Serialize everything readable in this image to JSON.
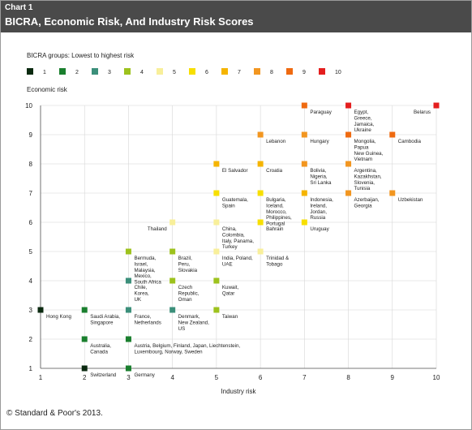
{
  "header": {
    "chart_number": "Chart 1",
    "title": "BICRA, Economic Risk, And Industry Risk Scores"
  },
  "footer": {
    "copyright": "© Standard & Poor's 2013."
  },
  "chart_data": {
    "type": "scatter",
    "legend_title": "BICRA groups: Lowest to highest risk",
    "legend_placement": "top-left",
    "xlabel": "Industry risk",
    "ylabel": "Economic risk",
    "xlim": [
      1,
      10
    ],
    "ylim": [
      1,
      10
    ],
    "x_ticks": [
      "1",
      "2",
      "3",
      "4",
      "5",
      "6",
      "7",
      "8",
      "9",
      "10"
    ],
    "y_ticks": [
      "1",
      "2",
      "3",
      "4",
      "5",
      "6",
      "7",
      "8",
      "9",
      "10"
    ],
    "grid": true,
    "groups": [
      {
        "group": 1,
        "label": "1",
        "color": "#0b2a10"
      },
      {
        "group": 2,
        "label": "2",
        "color": "#1a7f2e"
      },
      {
        "group": 3,
        "label": "3",
        "color": "#3b8f7a"
      },
      {
        "group": 4,
        "label": "4",
        "color": "#9dc21d"
      },
      {
        "group": 5,
        "label": "5",
        "color": "#f8ef9a"
      },
      {
        "group": 6,
        "label": "6",
        "color": "#f7df00"
      },
      {
        "group": 7,
        "label": "7",
        "color": "#f5b400"
      },
      {
        "group": 8,
        "label": "8",
        "color": "#f29620"
      },
      {
        "group": 9,
        "label": "9",
        "color": "#ef6a10"
      },
      {
        "group": 10,
        "label": "10",
        "color": "#e41e1e"
      }
    ],
    "points": [
      {
        "x": 1,
        "y": 3,
        "group": 1,
        "label": [
          "Hong Kong"
        ]
      },
      {
        "x": 2,
        "y": 1,
        "group": 1,
        "label": [
          "Switzerland"
        ]
      },
      {
        "x": 2,
        "y": 3,
        "group": 2,
        "label": [
          "Saudi Arabia,",
          "Singapore"
        ]
      },
      {
        "x": 2,
        "y": 2,
        "group": 2,
        "label": [
          "Australia,",
          "Canada"
        ]
      },
      {
        "x": 3,
        "y": 1,
        "group": 2,
        "label": [
          "Germany"
        ]
      },
      {
        "x": 3,
        "y": 2,
        "group": 2,
        "label": [
          "Austria, Belgium, Finland, Japan, Liechtenstein,",
          "Luxembourg, Norway, Sweden"
        ]
      },
      {
        "x": 3,
        "y": 3,
        "group": 3,
        "label": [
          "France,",
          "Netherlands"
        ]
      },
      {
        "x": 4,
        "y": 3,
        "group": 3,
        "label": [
          "Denmark,",
          "New Zealand,",
          "US"
        ]
      },
      {
        "x": 3,
        "y": 4,
        "group": 3,
        "label": [
          "Chile,",
          "Korea,",
          "UK"
        ]
      },
      {
        "x": 3,
        "y": 5,
        "group": 4,
        "label": [
          "Bermuda,",
          "Israel,",
          "Malaysia,",
          "Mexico,",
          "South Africa"
        ]
      },
      {
        "x": 4,
        "y": 5,
        "group": 4,
        "label": [
          "Brazil,",
          "Peru,",
          "Slovakia"
        ]
      },
      {
        "x": 4,
        "y": 4,
        "group": 4,
        "label": [
          "Czech",
          "Republic,",
          "Oman"
        ]
      },
      {
        "x": 5,
        "y": 4,
        "group": 4,
        "label": [
          "Kuwait,",
          "Qatar"
        ]
      },
      {
        "x": 5,
        "y": 3,
        "group": 4,
        "label": [
          "Taiwan"
        ]
      },
      {
        "x": 4,
        "y": 6,
        "group": 5,
        "label": [
          "Thailand"
        ],
        "labelSide": "left"
      },
      {
        "x": 5,
        "y": 6,
        "group": 5,
        "label": [
          "China,",
          "Colombia,",
          "Italy, Panama,",
          "Turkey"
        ]
      },
      {
        "x": 5,
        "y": 5,
        "group": 5,
        "label": [
          "India, Poland,",
          "UAE"
        ]
      },
      {
        "x": 6,
        "y": 5,
        "group": 5,
        "label": [
          "Trinidad &",
          "Tobago"
        ]
      },
      {
        "x": 5,
        "y": 7,
        "group": 6,
        "label": [
          "Guatemala,",
          "Spain"
        ]
      },
      {
        "x": 6,
        "y": 7,
        "group": 6,
        "label": [
          "Bulgaria,",
          "Iceland,",
          "Morocco,",
          "Philippines,",
          "Portugal"
        ]
      },
      {
        "x": 6,
        "y": 6,
        "group": 6,
        "label": [
          "Bahrain"
        ]
      },
      {
        "x": 7,
        "y": 6,
        "group": 6,
        "label": [
          "Uruguay"
        ]
      },
      {
        "x": 5,
        "y": 8,
        "group": 7,
        "label": [
          "El Salvador"
        ]
      },
      {
        "x": 6,
        "y": 8,
        "group": 7,
        "label": [
          "Croatia"
        ]
      },
      {
        "x": 7,
        "y": 7,
        "group": 7,
        "label": [
          "Indonesia,",
          "Ireland,",
          "Jordan,",
          "Russia"
        ]
      },
      {
        "x": 7,
        "y": 8,
        "group": 8,
        "label": [
          "Bolivia,",
          "Nigeria,",
          "Sri Lanka"
        ]
      },
      {
        "x": 8,
        "y": 8,
        "group": 8,
        "label": [
          "Argentina,",
          "Kazakhstan,",
          "Slovenia,",
          "Tunisia"
        ]
      },
      {
        "x": 8,
        "y": 7,
        "group": 8,
        "label": [
          "Azerbaijan,",
          "Georgia"
        ]
      },
      {
        "x": 9,
        "y": 7,
        "group": 8,
        "label": [
          "Uzbekistan"
        ]
      },
      {
        "x": 6,
        "y": 9,
        "group": 8,
        "label": [
          "Lebanon"
        ]
      },
      {
        "x": 7,
        "y": 9,
        "group": 8,
        "label": [
          "Hungary"
        ]
      },
      {
        "x": 7,
        "y": 10,
        "group": 9,
        "label": [
          "Paraguay"
        ]
      },
      {
        "x": 8,
        "y": 9,
        "group": 9,
        "label": [
          "Mongolia,",
          "Papua",
          "New Guinea,",
          "Vietnam"
        ]
      },
      {
        "x": 9,
        "y": 9,
        "group": 9,
        "label": [
          "Cambodia"
        ]
      },
      {
        "x": 8,
        "y": 10,
        "group": 10,
        "label": [
          "Egypt,",
          "Greece,",
          "Jamaica,",
          "Ukraine"
        ]
      },
      {
        "x": 10,
        "y": 10,
        "group": 10,
        "label": [
          "Belarus"
        ],
        "labelSide": "left"
      }
    ]
  }
}
